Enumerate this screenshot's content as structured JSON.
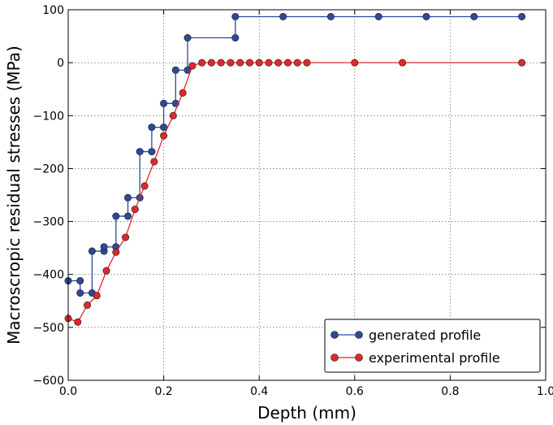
{
  "chart_data": {
    "type": "line",
    "xlabel": "Depth (mm)",
    "ylabel": "Macroscropic residual stresses (MPa)",
    "xlim": [
      0.0,
      1.0
    ],
    "ylim": [
      -600,
      100
    ],
    "xticks": [
      0.0,
      0.2,
      0.4,
      0.6,
      0.8,
      1.0
    ],
    "xtick_labels": [
      "0.0",
      "0.2",
      "0.4",
      "0.6",
      "0.8",
      "1.0"
    ],
    "yticks": [
      -600,
      -500,
      -400,
      -300,
      -200,
      -100,
      0,
      100
    ],
    "ytick_labels": [
      "−600",
      "−500",
      "−400",
      "−300",
      "−200",
      "−100",
      "0",
      "100"
    ],
    "grid": true,
    "legend_position": "bottom-right",
    "series": [
      {
        "name": "generated profile",
        "color": "#2c4a9a",
        "step": true,
        "x": [
          0.0,
          0.025,
          0.025,
          0.05,
          0.05,
          0.075,
          0.075,
          0.1,
          0.1,
          0.125,
          0.125,
          0.15,
          0.15,
          0.175,
          0.175,
          0.2,
          0.2,
          0.225,
          0.225,
          0.25,
          0.25,
          0.35,
          0.35,
          0.45,
          0.55,
          0.65,
          0.75,
          0.85,
          0.95
        ],
        "y": [
          -412,
          -412,
          -435,
          -435,
          -356,
          -356,
          -348,
          -348,
          -290,
          -290,
          -255,
          -255,
          -168,
          -168,
          -122,
          -122,
          -77,
          -77,
          -14,
          -14,
          47,
          47,
          87,
          87,
          87,
          87,
          87,
          87,
          87
        ]
      },
      {
        "name": "experimental profile",
        "color": "#e0282a",
        "step": false,
        "x": [
          0.0,
          0.02,
          0.04,
          0.06,
          0.08,
          0.1,
          0.12,
          0.14,
          0.16,
          0.18,
          0.2,
          0.22,
          0.24,
          0.26,
          0.28,
          0.3,
          0.32,
          0.34,
          0.36,
          0.38,
          0.4,
          0.42,
          0.44,
          0.46,
          0.48,
          0.5,
          0.6,
          0.7,
          0.95
        ],
        "y": [
          -483,
          -490,
          -458,
          -440,
          -393,
          -358,
          -330,
          -277,
          -233,
          -187,
          -138,
          -100,
          -57,
          -6,
          0,
          0,
          0,
          0,
          0,
          0,
          0,
          0,
          0,
          0,
          0,
          0,
          0,
          0,
          0
        ]
      }
    ]
  }
}
